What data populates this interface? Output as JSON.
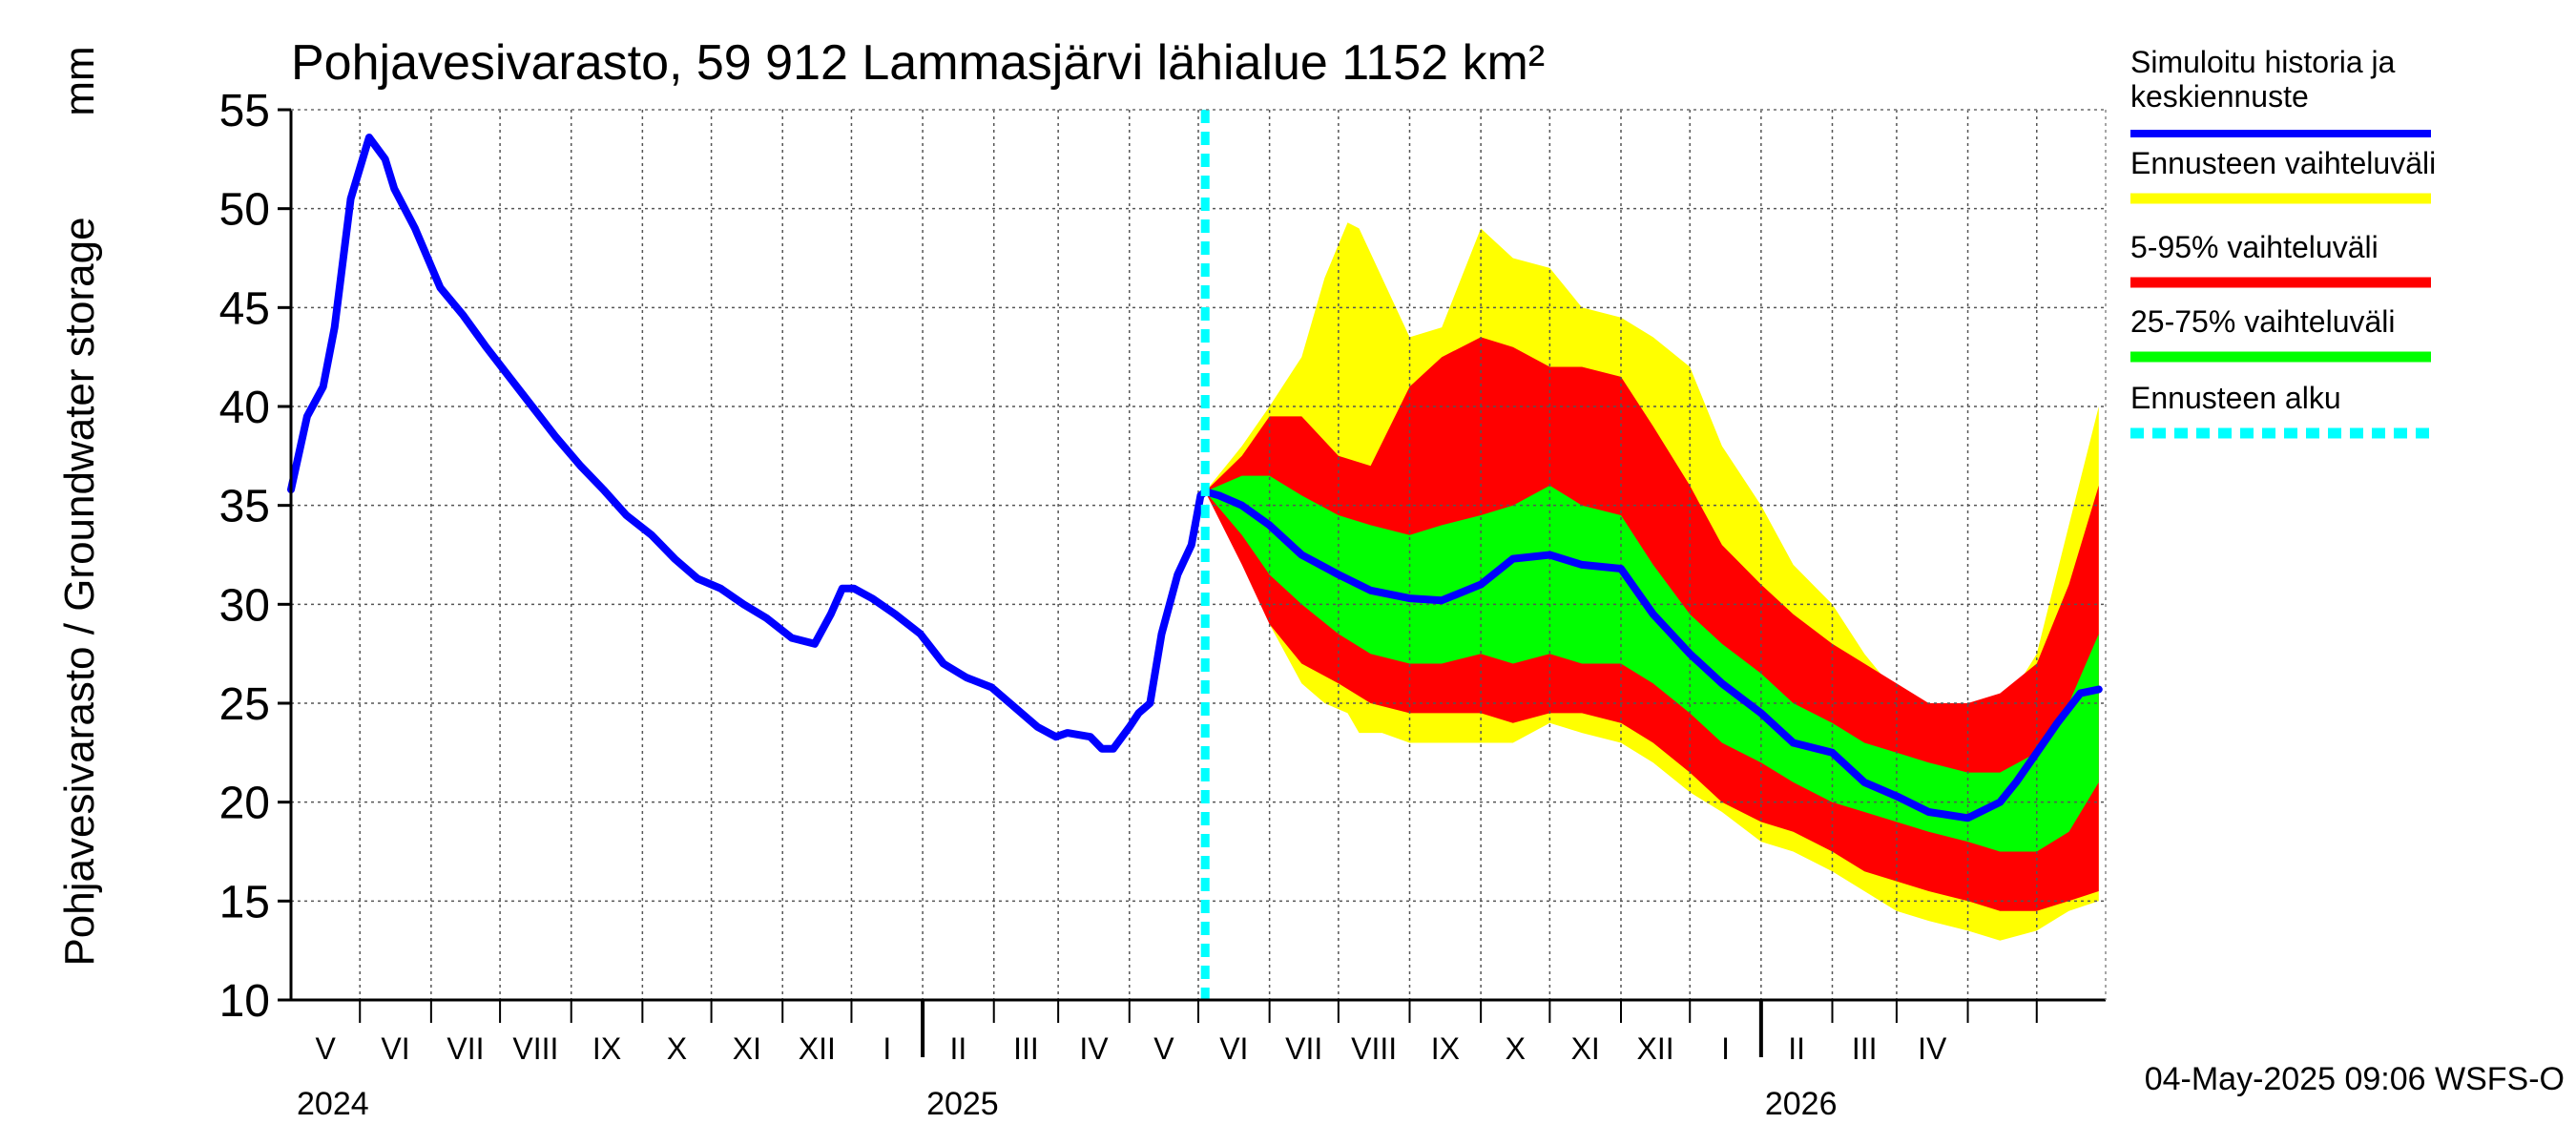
{
  "chart_data": {
    "type": "area",
    "title": "Pohjavesivarasto, 59 912 Lammasjärvi lähialue 1152 km²",
    "ylabel": "Pohjavesivarasto / Groundwater storage",
    "yunit": "mm",
    "ylim": [
      10,
      55
    ],
    "yticks": [
      10,
      15,
      20,
      25,
      30,
      35,
      40,
      45,
      50,
      55
    ],
    "xlim": [
      "2024-04-01",
      "2026-05-31"
    ],
    "grid": true,
    "legend_position": "right",
    "month_labels": [
      "V",
      "VI",
      "VII",
      "VIII",
      "IX",
      "X",
      "XI",
      "XII",
      "I",
      "II",
      "III",
      "IV",
      "V",
      "VI",
      "VII",
      "VIII",
      "IX",
      "X",
      "XI",
      "XII",
      "I",
      "II",
      "III",
      "IV"
    ],
    "year_labels": [
      "2024",
      "2025",
      "2026"
    ],
    "forecast_start": "2025-05-04",
    "timestamp": "04-May-2025 09:06 WSFS-O",
    "colors": {
      "history": "#0000ff",
      "range_full": "#ffff00",
      "range_5_95": "#ff0000",
      "range_25_75": "#00ff00",
      "forecast_start": "#00ffff"
    },
    "series": [
      {
        "name": "Simuloitu historia ja keskiennuste",
        "x": [
          "2024-04-01",
          "2024-04-08",
          "2024-04-15",
          "2024-04-20",
          "2024-04-27",
          "2024-05-05",
          "2024-05-12",
          "2024-05-16",
          "2024-05-25",
          "2024-06-05",
          "2024-06-15",
          "2024-06-25",
          "2024-07-05",
          "2024-07-15",
          "2024-07-25",
          "2024-08-05",
          "2024-08-15",
          "2024-08-25",
          "2024-09-05",
          "2024-09-15",
          "2024-09-25",
          "2024-10-05",
          "2024-10-15",
          "2024-10-25",
          "2024-11-05",
          "2024-11-15",
          "2024-11-22",
          "2024-11-27",
          "2024-12-02",
          "2024-12-10",
          "2024-12-20",
          "2024-12-31",
          "2025-01-10",
          "2025-01-20",
          "2025-01-31",
          "2025-02-10",
          "2025-02-20",
          "2025-02-28",
          "2025-03-05",
          "2025-03-15",
          "2025-03-20",
          "2025-03-25",
          "2025-04-01",
          "2025-04-05",
          "2025-04-10",
          "2025-04-15",
          "2025-04-22",
          "2025-04-28",
          "2025-05-02",
          "2025-05-04",
          "2025-05-10",
          "2025-05-20",
          "2025-06-01",
          "2025-06-15",
          "2025-07-01",
          "2025-07-15",
          "2025-08-01",
          "2025-08-15",
          "2025-09-01",
          "2025-09-15",
          "2025-10-01",
          "2025-10-15",
          "2025-11-01",
          "2025-11-15",
          "2025-12-01",
          "2025-12-15",
          "2026-01-01",
          "2026-01-15",
          "2026-02-01",
          "2026-02-15",
          "2026-03-01",
          "2026-03-15",
          "2026-04-01",
          "2026-04-15",
          "2026-04-22",
          "2026-05-01",
          "2026-05-10",
          "2026-05-20",
          "2026-05-28"
        ],
        "values": [
          35.8,
          39.5,
          41.0,
          44.0,
          50.5,
          53.6,
          52.5,
          51.0,
          49.0,
          46.0,
          44.6,
          43.0,
          41.5,
          40.0,
          38.5,
          37.0,
          35.8,
          34.5,
          33.5,
          32.3,
          31.3,
          30.8,
          30.0,
          29.3,
          28.3,
          28.0,
          29.5,
          30.8,
          30.8,
          30.3,
          29.5,
          28.5,
          27.0,
          26.3,
          25.8,
          24.8,
          23.8,
          23.3,
          23.5,
          23.3,
          22.7,
          22.7,
          23.8,
          24.5,
          25.0,
          28.5,
          31.5,
          33.0,
          35.5,
          35.7,
          35.5,
          35.0,
          34.0,
          32.5,
          31.5,
          30.7,
          30.3,
          30.2,
          31.0,
          32.3,
          32.5,
          32.0,
          31.8,
          29.5,
          27.5,
          26.0,
          24.5,
          23.0,
          22.5,
          21.0,
          20.3,
          19.5,
          19.2,
          20.0,
          21.0,
          22.5,
          24.0,
          25.5,
          25.7
        ]
      },
      {
        "name": "Ennusteen vaihteluväli",
        "x": [
          "2025-05-04",
          "2025-05-20",
          "2025-06-01",
          "2025-06-15",
          "2025-06-25",
          "2025-07-05",
          "2025-07-10",
          "2025-07-20",
          "2025-08-01",
          "2025-08-15",
          "2025-09-01",
          "2025-09-15",
          "2025-10-01",
          "2025-10-15",
          "2025-11-01",
          "2025-11-15",
          "2025-12-01",
          "2025-12-15",
          "2026-01-01",
          "2026-01-15",
          "2026-02-01",
          "2026-02-15",
          "2026-03-01",
          "2026-03-15",
          "2026-04-01",
          "2026-04-15",
          "2026-05-01",
          "2026-05-15",
          "2026-05-28"
        ],
        "upper": [
          35.7,
          38.0,
          40.0,
          42.5,
          46.5,
          49.3,
          49.0,
          46.5,
          43.5,
          44.0,
          49.0,
          47.5,
          47.0,
          45.0,
          44.5,
          43.5,
          42.0,
          38.0,
          35.0,
          32.0,
          30.0,
          27.5,
          25.5,
          24.0,
          24.0,
          24.5,
          27.5,
          34.0,
          40.0
        ],
        "lower": [
          35.7,
          33.0,
          29.0,
          26.0,
          25.0,
          24.5,
          23.5,
          23.5,
          23.0,
          23.0,
          23.0,
          23.0,
          24.0,
          23.5,
          23.0,
          22.0,
          20.5,
          19.5,
          18.0,
          17.5,
          16.5,
          15.5,
          14.5,
          14.0,
          13.5,
          13.0,
          13.5,
          14.5,
          15.0
        ]
      },
      {
        "name": "5-95% vaihteluväli",
        "x": [
          "2025-05-04",
          "2025-05-20",
          "2025-06-01",
          "2025-06-15",
          "2025-07-01",
          "2025-07-15",
          "2025-08-01",
          "2025-08-15",
          "2025-09-01",
          "2025-09-15",
          "2025-10-01",
          "2025-10-15",
          "2025-11-01",
          "2025-11-15",
          "2025-12-01",
          "2025-12-15",
          "2026-01-01",
          "2026-01-15",
          "2026-02-01",
          "2026-02-15",
          "2026-03-01",
          "2026-03-15",
          "2026-04-01",
          "2026-04-15",
          "2026-05-01",
          "2026-05-15",
          "2026-05-28"
        ],
        "upper": [
          35.7,
          37.5,
          39.5,
          39.5,
          37.5,
          37.0,
          41.0,
          42.5,
          43.5,
          43.0,
          42.0,
          42.0,
          41.5,
          39.0,
          36.0,
          33.0,
          31.0,
          29.5,
          28.0,
          27.0,
          26.0,
          25.0,
          25.0,
          25.5,
          27.0,
          31.0,
          36.0
        ],
        "lower": [
          35.7,
          32.0,
          29.0,
          27.0,
          26.0,
          25.0,
          24.5,
          24.5,
          24.5,
          24.0,
          24.5,
          24.5,
          24.0,
          23.0,
          21.5,
          20.0,
          19.0,
          18.5,
          17.5,
          16.5,
          16.0,
          15.5,
          15.0,
          14.5,
          14.5,
          15.0,
          15.5
        ]
      },
      {
        "name": "25-75% vaihteluväli",
        "x": [
          "2025-05-04",
          "2025-05-20",
          "2025-06-01",
          "2025-06-15",
          "2025-07-01",
          "2025-07-15",
          "2025-08-01",
          "2025-08-15",
          "2025-09-01",
          "2025-09-15",
          "2025-10-01",
          "2025-10-15",
          "2025-11-01",
          "2025-11-15",
          "2025-12-01",
          "2025-12-15",
          "2026-01-01",
          "2026-01-15",
          "2026-02-01",
          "2026-02-15",
          "2026-03-01",
          "2026-03-15",
          "2026-04-01",
          "2026-04-15",
          "2026-05-01",
          "2026-05-15",
          "2026-05-28"
        ],
        "upper": [
          35.7,
          36.5,
          36.5,
          35.5,
          34.5,
          34.0,
          33.5,
          34.0,
          34.5,
          35.0,
          36.0,
          35.0,
          34.5,
          32.0,
          29.5,
          28.0,
          26.5,
          25.0,
          24.0,
          23.0,
          22.5,
          22.0,
          21.5,
          21.5,
          22.5,
          25.0,
          28.5
        ],
        "lower": [
          35.7,
          33.5,
          31.5,
          30.0,
          28.5,
          27.5,
          27.0,
          27.0,
          27.5,
          27.0,
          27.5,
          27.0,
          27.0,
          26.0,
          24.5,
          23.0,
          22.0,
          21.0,
          20.0,
          19.5,
          19.0,
          18.5,
          18.0,
          17.5,
          17.5,
          18.5,
          21.0
        ]
      }
    ],
    "legend": [
      {
        "key": "history",
        "label": "Simuloitu historia ja",
        "label2": "keskiennuste"
      },
      {
        "key": "range_full",
        "label": "Ennusteen vaihteluväli",
        "label2": ""
      },
      {
        "key": "range_5_95",
        "label": "5-95% vaihteluväli",
        "label2": ""
      },
      {
        "key": "range_25_75",
        "label": "25-75% vaihteluväli",
        "label2": ""
      },
      {
        "key": "forecast_start",
        "label": "Ennusteen alku",
        "label2": ""
      }
    ]
  }
}
